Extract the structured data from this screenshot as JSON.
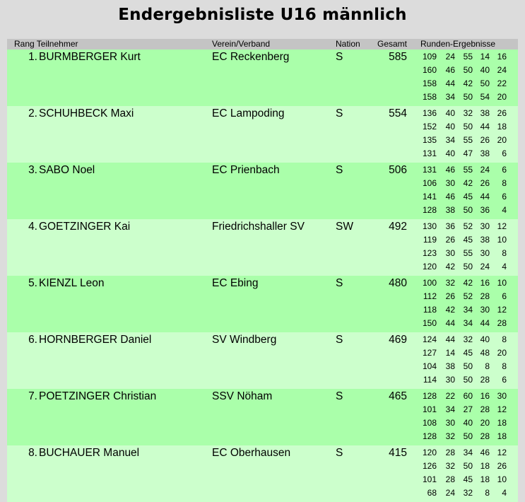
{
  "title": "Endergebnisliste U16 männlich",
  "header": {
    "rank_name": "Rang Teilnehmer",
    "club": "Verein/Verband",
    "nation": "Nation",
    "total": "Gesamt",
    "rounds": "Runden-Ergebnisse"
  },
  "rows": [
    {
      "rank": "1.",
      "name": "BURMBERGER Kurt",
      "club": "EC Reckenberg",
      "nation": "S",
      "total": "585",
      "rounds": [
        [
          "109",
          "24",
          "55",
          "14",
          "16"
        ],
        [
          "160",
          "46",
          "50",
          "40",
          "24"
        ],
        [
          "158",
          "44",
          "42",
          "50",
          "22"
        ],
        [
          "158",
          "34",
          "50",
          "54",
          "20"
        ]
      ]
    },
    {
      "rank": "2.",
      "name": "SCHUHBECK Maxi",
      "club": "EC Lampoding",
      "nation": "S",
      "total": "554",
      "rounds": [
        [
          "136",
          "40",
          "32",
          "38",
          "26"
        ],
        [
          "152",
          "40",
          "50",
          "44",
          "18"
        ],
        [
          "135",
          "34",
          "55",
          "26",
          "20"
        ],
        [
          "131",
          "40",
          "47",
          "38",
          "6"
        ]
      ]
    },
    {
      "rank": "3.",
      "name": "SABO Noel",
      "club": "EC Prienbach",
      "nation": "S",
      "total": "506",
      "rounds": [
        [
          "131",
          "46",
          "55",
          "24",
          "6"
        ],
        [
          "106",
          "30",
          "42",
          "26",
          "8"
        ],
        [
          "141",
          "46",
          "45",
          "44",
          "6"
        ],
        [
          "128",
          "38",
          "50",
          "36",
          "4"
        ]
      ]
    },
    {
      "rank": "4.",
      "name": "GOETZINGER Kai",
      "club": "Friedrichshaller SV",
      "nation": "SW",
      "total": "492",
      "rounds": [
        [
          "130",
          "36",
          "52",
          "30",
          "12"
        ],
        [
          "119",
          "26",
          "45",
          "38",
          "10"
        ],
        [
          "123",
          "30",
          "55",
          "30",
          "8"
        ],
        [
          "120",
          "42",
          "50",
          "24",
          "4"
        ]
      ]
    },
    {
      "rank": "5.",
      "name": "KIENZL Leon",
      "club": "EC Ebing",
      "nation": "S",
      "total": "480",
      "rounds": [
        [
          "100",
          "32",
          "42",
          "16",
          "10"
        ],
        [
          "112",
          "26",
          "52",
          "28",
          "6"
        ],
        [
          "118",
          "42",
          "34",
          "30",
          "12"
        ],
        [
          "150",
          "44",
          "34",
          "44",
          "28"
        ]
      ]
    },
    {
      "rank": "6.",
      "name": "HORNBERGER Daniel",
      "club": "SV Windberg",
      "nation": "S",
      "total": "469",
      "rounds": [
        [
          "124",
          "44",
          "32",
          "40",
          "8"
        ],
        [
          "127",
          "14",
          "45",
          "48",
          "20"
        ],
        [
          "104",
          "38",
          "50",
          "8",
          "8"
        ],
        [
          "114",
          "30",
          "50",
          "28",
          "6"
        ]
      ]
    },
    {
      "rank": "7.",
      "name": "POETZINGER Christian",
      "club": "SSV Nöham",
      "nation": "S",
      "total": "465",
      "rounds": [
        [
          "128",
          "22",
          "60",
          "16",
          "30"
        ],
        [
          "101",
          "34",
          "27",
          "28",
          "12"
        ],
        [
          "108",
          "30",
          "40",
          "20",
          "18"
        ],
        [
          "128",
          "32",
          "50",
          "28",
          "18"
        ]
      ]
    },
    {
      "rank": "8.",
      "name": "BUCHAUER Manuel",
      "club": "EC Oberhausen",
      "nation": "S",
      "total": "415",
      "rounds": [
        [
          "120",
          "28",
          "34",
          "46",
          "12"
        ],
        [
          "126",
          "32",
          "50",
          "18",
          "26"
        ],
        [
          "101",
          "28",
          "45",
          "18",
          "10"
        ],
        [
          "68",
          "24",
          "32",
          "8",
          "4"
        ]
      ]
    }
  ]
}
